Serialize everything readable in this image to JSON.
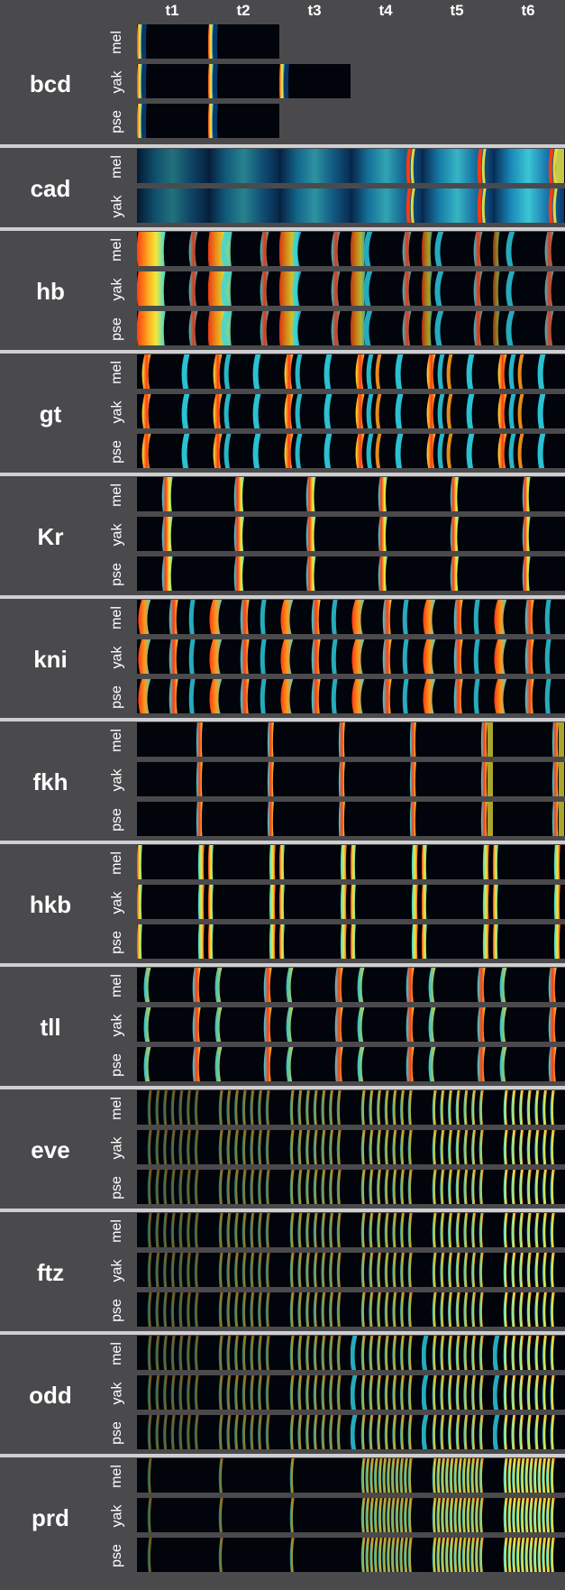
{
  "timepoints": [
    "t1",
    "t2",
    "t3",
    "t4",
    "t5",
    "t6"
  ],
  "genes": [
    {
      "name": "bcd",
      "species": [
        "mel",
        "yak",
        "pse"
      ],
      "rows": [
        {
          "style": "edge",
          "n": 2
        },
        {
          "style": "edge",
          "n": 3
        },
        {
          "style": "edge",
          "n": 2
        }
      ]
    },
    {
      "name": "cad",
      "species": [
        "mel",
        "yak"
      ],
      "rows": [
        {
          "style": "diffuse",
          "n": 6
        },
        {
          "style": "diffuse",
          "n": 6
        }
      ]
    },
    {
      "name": "hb",
      "species": [
        "mel",
        "yak",
        "pse"
      ],
      "rows": [
        {
          "style": "hb",
          "n": 6
        },
        {
          "style": "hb",
          "n": 6
        },
        {
          "style": "hb",
          "n": 6
        }
      ]
    },
    {
      "name": "gt",
      "species": [
        "mel",
        "yak",
        "pse"
      ],
      "rows": [
        {
          "style": "gt",
          "n": 6
        },
        {
          "style": "gt",
          "n": 6
        },
        {
          "style": "gt",
          "n": 6
        }
      ]
    },
    {
      "name": "Kr",
      "species": [
        "mel",
        "yak",
        "pse"
      ],
      "rows": [
        {
          "style": "kr",
          "n": 6
        },
        {
          "style": "kr",
          "n": 6
        },
        {
          "style": "kr",
          "n": 6
        }
      ]
    },
    {
      "name": "kni",
      "species": [
        "mel",
        "yak",
        "pse"
      ],
      "rows": [
        {
          "style": "kni",
          "n": 6
        },
        {
          "style": "kni",
          "n": 6
        },
        {
          "style": "kni",
          "n": 6
        }
      ]
    },
    {
      "name": "fkh",
      "species": [
        "mel",
        "yak",
        "pse"
      ],
      "rows": [
        {
          "style": "fkh",
          "n": 6
        },
        {
          "style": "fkh",
          "n": 6
        },
        {
          "style": "fkh",
          "n": 6
        }
      ]
    },
    {
      "name": "hkb",
      "species": [
        "mel",
        "yak",
        "pse"
      ],
      "rows": [
        {
          "style": "hkb",
          "n": 6
        },
        {
          "style": "hkb",
          "n": 6
        },
        {
          "style": "hkb",
          "n": 6
        }
      ]
    },
    {
      "name": "tll",
      "species": [
        "mel",
        "yak",
        "pse"
      ],
      "rows": [
        {
          "style": "tll",
          "n": 6
        },
        {
          "style": "tll",
          "n": 6
        },
        {
          "style": "tll",
          "n": 6
        }
      ]
    },
    {
      "name": "eve",
      "species": [
        "mel",
        "yak",
        "pse"
      ],
      "rows": [
        {
          "style": "stripes7",
          "n": 6
        },
        {
          "style": "stripes7",
          "n": 6
        },
        {
          "style": "stripes7",
          "n": 6
        }
      ]
    },
    {
      "name": "ftz",
      "species": [
        "mel",
        "yak",
        "pse"
      ],
      "rows": [
        {
          "style": "stripes7",
          "n": 6
        },
        {
          "style": "stripes7",
          "n": 6
        },
        {
          "style": "stripes7",
          "n": 6
        }
      ]
    },
    {
      "name": "odd",
      "species": [
        "mel",
        "yak",
        "pse"
      ],
      "rows": [
        {
          "style": "odd",
          "n": 6
        },
        {
          "style": "odd",
          "n": 6
        },
        {
          "style": "odd",
          "n": 6
        }
      ]
    },
    {
      "name": "prd",
      "species": [
        "mel",
        "yak",
        "pse"
      ],
      "rows": [
        {
          "style": "prd",
          "n": 6
        },
        {
          "style": "prd",
          "n": 6
        },
        {
          "style": "prd",
          "n": 6
        }
      ]
    }
  ]
}
